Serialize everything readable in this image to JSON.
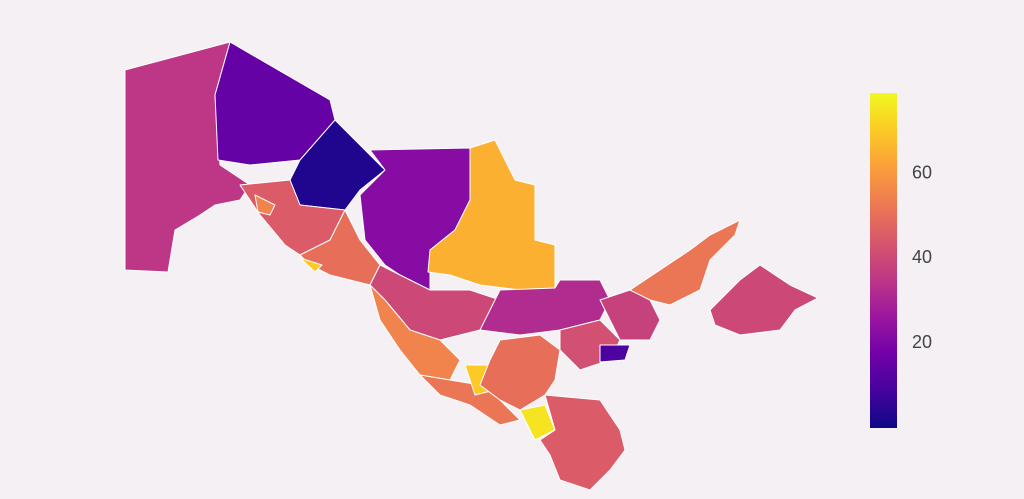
{
  "chart_data": {
    "type": "choropleth",
    "colorscale": [
      "#0d0887",
      "#46039f",
      "#7201a8",
      "#9c179e",
      "#bd3786",
      "#d8576b",
      "#ed7953",
      "#fb9f3a",
      "#fdca26",
      "#f0f921"
    ],
    "zlim": [
      0,
      79
    ],
    "zticks": [
      20,
      40,
      60
    ],
    "values": [
      35,
      15,
      3,
      22,
      65,
      45,
      50,
      40,
      32,
      55,
      52,
      70,
      75,
      45,
      50,
      42,
      38,
      52,
      40,
      10,
      70,
      55
    ]
  }
}
